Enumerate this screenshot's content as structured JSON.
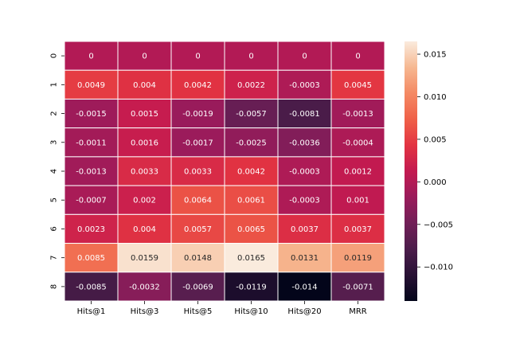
{
  "chart_data": {
    "type": "heatmap",
    "title": "",
    "xlabel": "",
    "ylabel": "",
    "x_categories": [
      "Hits@1",
      "Hits@3",
      "Hits@5",
      "Hits@10",
      "Hits@20",
      "MRR"
    ],
    "y_categories": [
      "0",
      "1",
      "2",
      "3",
      "4",
      "5",
      "6",
      "7",
      "8"
    ],
    "values": [
      [
        0,
        0,
        0,
        0,
        0,
        0
      ],
      [
        0.0049,
        0.004,
        0.0042,
        0.0022,
        -0.0003,
        0.0045
      ],
      [
        -0.0015,
        0.0015,
        -0.0019,
        -0.0057,
        -0.0081,
        -0.0013
      ],
      [
        -0.0011,
        0.0016,
        -0.0017,
        -0.0025,
        -0.0036,
        -0.0004
      ],
      [
        -0.0013,
        0.0033,
        0.0033,
        0.0042,
        -0.0003,
        0.0012
      ],
      [
        -0.0007,
        0.002,
        0.0064,
        0.0061,
        -0.0003,
        0.001
      ],
      [
        0.0023,
        0.004,
        0.0057,
        0.0065,
        0.0037,
        0.0037
      ],
      [
        0.0085,
        0.0159,
        0.0148,
        0.0165,
        0.0131,
        0.0119
      ],
      [
        -0.0085,
        -0.0032,
        -0.0069,
        -0.0119,
        -0.014,
        -0.0071
      ]
    ],
    "cell_labels": [
      [
        "0",
        "0",
        "0",
        "0",
        "0",
        "0"
      ],
      [
        "0.0049",
        "0.004",
        "0.0042",
        "0.0022",
        "-0.0003",
        "0.0045"
      ],
      [
        "-0.0015",
        "0.0015",
        "-0.0019",
        "-0.0057",
        "-0.0081",
        "-0.0013"
      ],
      [
        "-0.0011",
        "0.0016",
        "-0.0017",
        "-0.0025",
        "-0.0036",
        "-0.0004"
      ],
      [
        "-0.0013",
        "0.0033",
        "0.0033",
        "0.0042",
        "-0.0003",
        "0.0012"
      ],
      [
        "-0.0007",
        "0.002",
        "0.0064",
        "0.0061",
        "-0.0003",
        "0.001"
      ],
      [
        "0.0023",
        "0.004",
        "0.0057",
        "0.0065",
        "0.0037",
        "0.0037"
      ],
      [
        "0.0085",
        "0.0159",
        "0.0148",
        "0.0165",
        "0.0131",
        "0.0119"
      ],
      [
        "-0.0085",
        "-0.0032",
        "-0.0069",
        "-0.0119",
        "-0.014",
        "-0.0071"
      ]
    ],
    "vmin": -0.014,
    "vmax": 0.0165,
    "colormap": "rocket",
    "colorbar_ticks": [
      0.015,
      0.01,
      0.005,
      0.0,
      -0.005,
      -0.01
    ],
    "colorbar_tick_labels": [
      "0.015",
      "0.010",
      "0.005",
      "0.000",
      "−0.005",
      "−0.010"
    ],
    "grid": false,
    "legend": "colorbar-right"
  }
}
